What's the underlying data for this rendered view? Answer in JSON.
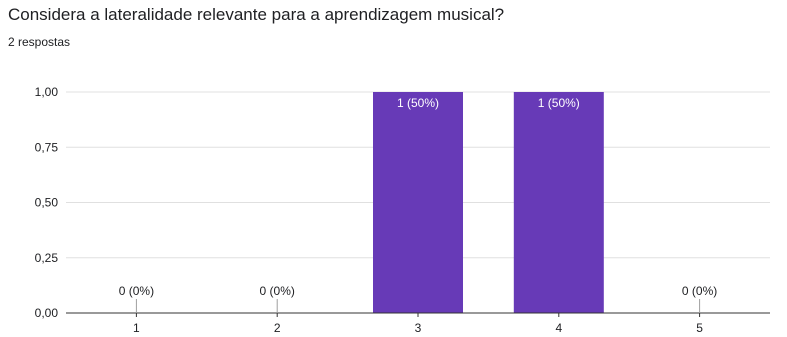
{
  "question": {
    "title": "Considera a lateralidade relevante para a aprendizagem musical?",
    "response_count": "2 respostas"
  },
  "chart_data": {
    "type": "bar",
    "title": "Considera a lateralidade relevante para a aprendizagem musical?",
    "subtitle": "2 respostas",
    "categories": [
      "1",
      "2",
      "3",
      "4",
      "5"
    ],
    "values": [
      0,
      0,
      1,
      1,
      0
    ],
    "data_labels": [
      "0 (0%)",
      "0 (0%)",
      "1 (50%)",
      "1 (50%)",
      "0 (0%)"
    ],
    "y_tick_labels": [
      "0,00",
      "0,25",
      "0,50",
      "0,75",
      "1,00"
    ],
    "y_ticks": [
      0,
      0.25,
      0.5,
      0.75,
      1
    ],
    "ylim": [
      0,
      1
    ],
    "xlabel": "",
    "ylabel": "",
    "grid": true,
    "legend": "none",
    "colors": {
      "bar": "#673ab7",
      "grid": "#e0e0e0",
      "axis": "#333333",
      "label_inside": "#ffffff",
      "label_outside": "#202124"
    }
  }
}
